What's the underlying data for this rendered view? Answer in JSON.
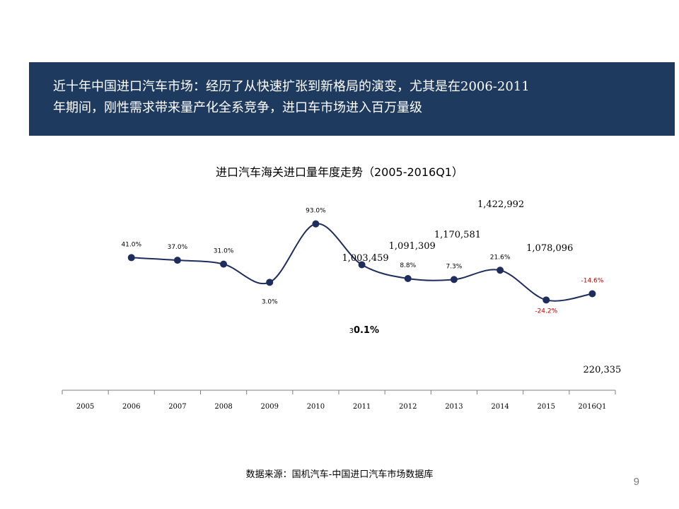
{
  "banner": {
    "line1": "近十年中国进口汽车市场：经历了从快速扩张到新格局的演变，尤其是在2006-2011",
    "line2": "年期间，刚性需求带来量产化全系竞争，进口车市场进入百万量级"
  },
  "chart_data": {
    "type": "line",
    "title": "进口汽车海关进口量年度走势（2005-2016Q1）",
    "categories": [
      "2005",
      "2006",
      "2007",
      "2008",
      "2009",
      "2010",
      "2011",
      "2012",
      "2013",
      "2014",
      "2015",
      "2016Q1"
    ],
    "growth_series": {
      "values": [
        null,
        41.0,
        37.0,
        31.0,
        3.0,
        93.0,
        30.1,
        8.8,
        7.3,
        21.6,
        -24.2,
        -14.6
      ],
      "labels": [
        "",
        "41.0%",
        "37.0%",
        "31.0%",
        "3.0%",
        "93.0%",
        "30.1%",
        "8.8%",
        "7.3%",
        "21.6%",
        "-24.2%",
        "-14.6%"
      ],
      "annotation_2011_prefix": "3",
      "annotation_2011_main": "0.1%"
    },
    "volume_labels": {
      "2011": "1,003,459",
      "2012": "1,091,309",
      "2013": "1,170,581",
      "2014": "1,422,992",
      "2015": "1,078,096",
      "2016Q1": "220,335"
    },
    "colors": {
      "line": "#1e2d5c",
      "negative_label": "#c00000",
      "axis": "#7f7f7f"
    }
  },
  "footer": {
    "source": "数据来源：国机汽车-中国进口汽车市场数据库",
    "page_number": "9"
  }
}
